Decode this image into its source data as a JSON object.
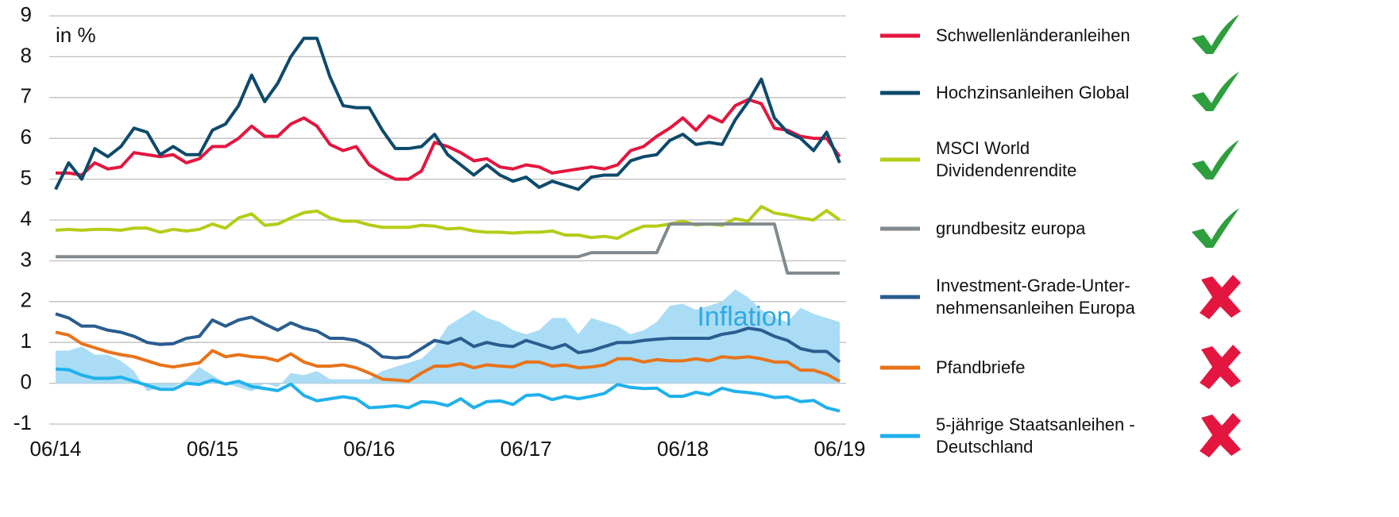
{
  "chart_data": {
    "type": "line",
    "annotation": "in %",
    "categories": [
      "06/14",
      null,
      null,
      null,
      null,
      null,
      null,
      null,
      null,
      null,
      null,
      null,
      "06/15",
      null,
      null,
      null,
      null,
      null,
      null,
      null,
      null,
      null,
      null,
      null,
      "06/16",
      null,
      null,
      null,
      null,
      null,
      null,
      null,
      null,
      null,
      null,
      null,
      "06/17",
      null,
      null,
      null,
      null,
      null,
      null,
      null,
      null,
      null,
      null,
      null,
      "06/18",
      null,
      null,
      null,
      null,
      null,
      null,
      null,
      null,
      null,
      null,
      null,
      "06/19"
    ],
    "ylim": [
      -1,
      9
    ],
    "yticks": [
      -1,
      0,
      1,
      2,
      3,
      4,
      5,
      6,
      7,
      8,
      9
    ],
    "grid": true,
    "inflation": {
      "name": "Inflation",
      "color": "#aadcf5",
      "label_color": "#2eaae1",
      "values": [
        0.8,
        0.8,
        0.9,
        0.7,
        0.7,
        0.55,
        0.3,
        -0.2,
        -0.1,
        -0.1,
        0.1,
        0.4,
        0.2,
        0.0,
        -0.1,
        -0.2,
        0.0,
        -0.1,
        0.25,
        0.2,
        0.3,
        0.1,
        0.1,
        0.1,
        0.1,
        0.3,
        0.4,
        0.5,
        0.6,
        0.9,
        1.4,
        1.6,
        1.8,
        1.6,
        1.5,
        1.3,
        1.2,
        1.3,
        1.6,
        1.6,
        1.2,
        1.6,
        1.5,
        1.4,
        1.2,
        1.3,
        1.5,
        1.9,
        1.95,
        1.8,
        1.9,
        2.0,
        2.3,
        2.1,
        1.8,
        1.6,
        1.5,
        1.85,
        1.7,
        1.6,
        1.5
      ]
    },
    "series": [
      {
        "name": "Schwellenländeranleihen",
        "color": "#e3163f",
        "values": [
          5.15,
          5.15,
          5.1,
          5.4,
          5.25,
          5.3,
          5.65,
          5.6,
          5.55,
          5.6,
          5.4,
          5.5,
          5.8,
          5.8,
          6.0,
          6.3,
          6.05,
          6.05,
          6.35,
          6.5,
          6.3,
          5.85,
          5.7,
          5.8,
          5.35,
          5.15,
          5.0,
          5.0,
          5.2,
          5.9,
          5.8,
          5.65,
          5.45,
          5.5,
          5.3,
          5.25,
          5.35,
          5.3,
          5.15,
          5.2,
          5.25,
          5.3,
          5.25,
          5.35,
          5.7,
          5.8,
          6.05,
          6.25,
          6.5,
          6.2,
          6.55,
          6.4,
          6.8,
          6.95,
          6.85,
          6.25,
          6.2,
          6.05,
          6.0,
          6.0,
          5.55
        ]
      },
      {
        "name": "Hochzinsanleihen Global",
        "color": "#0d4a6b",
        "values": [
          4.75,
          5.4,
          5.0,
          5.75,
          5.55,
          5.8,
          6.25,
          6.15,
          5.6,
          5.8,
          5.6,
          5.6,
          6.2,
          6.35,
          6.8,
          7.55,
          6.9,
          7.35,
          8.0,
          8.45,
          8.45,
          7.5,
          6.8,
          6.75,
          6.75,
          6.2,
          5.75,
          5.75,
          5.8,
          6.1,
          5.6,
          5.35,
          5.1,
          5.35,
          5.1,
          4.95,
          5.05,
          4.8,
          4.95,
          4.85,
          4.75,
          5.05,
          5.1,
          5.1,
          5.45,
          5.55,
          5.6,
          5.95,
          6.1,
          5.85,
          5.9,
          5.85,
          6.45,
          6.9,
          7.45,
          6.5,
          6.15,
          6.0,
          5.7,
          6.15,
          5.4
        ]
      },
      {
        "name": "MSCI World\nDividendenrendite",
        "color": "#b5cc18",
        "values": [
          3.75,
          3.77,
          3.75,
          3.77,
          3.77,
          3.75,
          3.8,
          3.8,
          3.7,
          3.77,
          3.73,
          3.77,
          3.9,
          3.8,
          4.05,
          4.15,
          3.87,
          3.9,
          4.05,
          4.18,
          4.22,
          4.05,
          3.97,
          3.97,
          3.88,
          3.82,
          3.82,
          3.82,
          3.87,
          3.85,
          3.78,
          3.8,
          3.73,
          3.7,
          3.7,
          3.68,
          3.7,
          3.7,
          3.73,
          3.63,
          3.63,
          3.57,
          3.6,
          3.55,
          3.72,
          3.85,
          3.85,
          3.9,
          3.97,
          3.88,
          3.9,
          3.87,
          4.03,
          3.97,
          4.33,
          4.17,
          4.12,
          4.05,
          4.0,
          4.23,
          4.0
        ]
      },
      {
        "name": "grundbesitz europa",
        "color": "#808a8f",
        "values": [
          3.1,
          3.1,
          3.1,
          3.1,
          3.1,
          3.1,
          3.1,
          3.1,
          3.1,
          3.1,
          3.1,
          3.1,
          3.1,
          3.1,
          3.1,
          3.1,
          3.1,
          3.1,
          3.1,
          3.1,
          3.1,
          3.1,
          3.1,
          3.1,
          3.1,
          3.1,
          3.1,
          3.1,
          3.1,
          3.1,
          3.1,
          3.1,
          3.1,
          3.1,
          3.1,
          3.1,
          3.1,
          3.1,
          3.1,
          3.1,
          3.1,
          3.2,
          3.2,
          3.2,
          3.2,
          3.2,
          3.2,
          3.9,
          3.9,
          3.9,
          3.9,
          3.9,
          3.9,
          3.9,
          3.9,
          3.9,
          2.7,
          2.7,
          2.7,
          2.7,
          2.7
        ]
      },
      {
        "name": "Investment-Grade-Unter-\nnehmensanleihen Europa",
        "color": "#2a5d8f",
        "values": [
          1.7,
          1.6,
          1.4,
          1.4,
          1.3,
          1.25,
          1.15,
          1.0,
          0.95,
          0.97,
          1.1,
          1.15,
          1.55,
          1.4,
          1.55,
          1.62,
          1.45,
          1.3,
          1.48,
          1.35,
          1.28,
          1.1,
          1.1,
          1.05,
          0.9,
          0.65,
          0.62,
          0.65,
          0.85,
          1.05,
          0.98,
          1.1,
          0.9,
          1.0,
          0.93,
          0.9,
          1.05,
          0.95,
          0.85,
          0.95,
          0.75,
          0.8,
          0.9,
          1.0,
          1.0,
          1.05,
          1.08,
          1.1,
          1.1,
          1.1,
          1.1,
          1.2,
          1.25,
          1.35,
          1.3,
          1.15,
          1.05,
          0.85,
          0.78,
          0.78,
          0.52
        ]
      },
      {
        "name": "Pfandbriefe",
        "color": "#e8731a",
        "values": [
          1.25,
          1.18,
          0.97,
          0.87,
          0.77,
          0.7,
          0.65,
          0.55,
          0.45,
          0.4,
          0.45,
          0.5,
          0.8,
          0.65,
          0.7,
          0.65,
          0.63,
          0.55,
          0.72,
          0.52,
          0.42,
          0.42,
          0.45,
          0.38,
          0.25,
          0.1,
          0.08,
          0.05,
          0.25,
          0.42,
          0.42,
          0.48,
          0.38,
          0.45,
          0.42,
          0.4,
          0.52,
          0.52,
          0.42,
          0.45,
          0.38,
          0.4,
          0.45,
          0.6,
          0.6,
          0.52,
          0.58,
          0.55,
          0.55,
          0.6,
          0.55,
          0.65,
          0.62,
          0.65,
          0.6,
          0.52,
          0.52,
          0.32,
          0.32,
          0.22,
          0.05
        ]
      },
      {
        "name": "5-jährige Staatsanleihen -\nDeutschland",
        "color": "#1fb1ec",
        "values": [
          0.35,
          0.33,
          0.2,
          0.12,
          0.12,
          0.15,
          0.05,
          -0.05,
          -0.15,
          -0.15,
          0.0,
          -0.03,
          0.08,
          -0.02,
          0.05,
          -0.08,
          -0.13,
          -0.18,
          -0.02,
          -0.3,
          -0.43,
          -0.38,
          -0.33,
          -0.38,
          -0.6,
          -0.58,
          -0.55,
          -0.6,
          -0.45,
          -0.47,
          -0.55,
          -0.38,
          -0.6,
          -0.45,
          -0.43,
          -0.52,
          -0.3,
          -0.28,
          -0.4,
          -0.32,
          -0.38,
          -0.32,
          -0.25,
          -0.03,
          -0.1,
          -0.13,
          -0.12,
          -0.32,
          -0.32,
          -0.22,
          -0.28,
          -0.12,
          -0.2,
          -0.23,
          -0.27,
          -0.35,
          -0.33,
          -0.45,
          -0.42,
          -0.6,
          -0.68
        ]
      }
    ]
  }
}
